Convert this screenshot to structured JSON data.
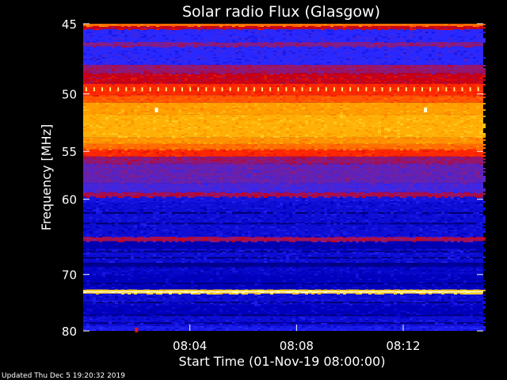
{
  "chart_data": {
    "type": "heatmap",
    "title": "Solar radio Flux (Glasgow)",
    "ylabel": "Frequency [MHz]",
    "xlabel": "Start Time (01-Nov-19 08:00:00)",
    "updated_text": "Updated Thu Dec  5 19:20:32 2019",
    "ylim": [
      45,
      80
    ],
    "y_axis": "reciprocal",
    "xlim": [
      "08:00:00",
      "08:15:00"
    ],
    "x_tick_labels": [
      "08:04",
      "08:08",
      "08:12"
    ],
    "x_ticks": [
      "08:04:00",
      "08:08:00",
      "08:12:00"
    ],
    "y_tick_labels": [
      "45",
      "50",
      "55",
      "60",
      "70",
      "80"
    ],
    "y_ticks": [
      45,
      50,
      55,
      60,
      70,
      80
    ],
    "grid": false,
    "colormap": "dark-blue to blue to red to orange to yellow (low to high intensity)",
    "bands": [
      {
        "f0": 45.0,
        "f1": 45.15,
        "level": 0.72
      },
      {
        "f0": 45.15,
        "f1": 45.35,
        "level": 0.5
      },
      {
        "f0": 45.35,
        "f1": 46.2,
        "level": 0.3
      },
      {
        "f0": 46.2,
        "f1": 46.5,
        "level": 0.42
      },
      {
        "f0": 46.5,
        "f1": 47.8,
        "level": 0.3
      },
      {
        "f0": 47.8,
        "f1": 48.4,
        "level": 0.44
      },
      {
        "f0": 48.4,
        "f1": 49.2,
        "level": 0.5
      },
      {
        "f0": 49.2,
        "f1": 50.1,
        "level": 0.6
      },
      {
        "f0": 50.1,
        "f1": 50.7,
        "level": 0.68
      },
      {
        "f0": 50.7,
        "f1": 51.7,
        "level": 0.8
      },
      {
        "f0": 51.7,
        "f1": 53.7,
        "level": 0.83
      },
      {
        "f0": 53.7,
        "f1": 54.3,
        "level": 0.78
      },
      {
        "f0": 54.3,
        "f1": 54.8,
        "level": 0.72
      },
      {
        "f0": 54.8,
        "f1": 55.5,
        "level": 0.6
      },
      {
        "f0": 55.5,
        "f1": 56.2,
        "level": 0.44
      },
      {
        "f0": 56.2,
        "f1": 58.2,
        "level": 0.38
      },
      {
        "f0": 58.2,
        "f1": 59.2,
        "level": 0.34
      },
      {
        "f0": 59.2,
        "f1": 59.7,
        "level": 0.46
      },
      {
        "f0": 59.7,
        "f1": 60.3,
        "level": 0.24
      },
      {
        "f0": 60.3,
        "f1": 64.6,
        "level": 0.22
      },
      {
        "f0": 64.6,
        "f1": 65.2,
        "level": 0.46
      },
      {
        "f0": 65.2,
        "f1": 66.2,
        "level": 0.16
      },
      {
        "f0": 66.2,
        "f1": 68.2,
        "level": 0.22
      },
      {
        "f0": 68.2,
        "f1": 68.8,
        "level": 0.1
      },
      {
        "f0": 68.8,
        "f1": 70.0,
        "level": 0.2
      },
      {
        "f0": 70.0,
        "f1": 72.4,
        "level": 0.18
      },
      {
        "f0": 72.4,
        "f1": 72.7,
        "level": 0.88
      },
      {
        "f0": 72.7,
        "f1": 72.9,
        "level": 1.0
      },
      {
        "f0": 72.9,
        "f1": 73.1,
        "level": 0.88
      },
      {
        "f0": 73.1,
        "f1": 75.0,
        "level": 0.22
      },
      {
        "f0": 75.0,
        "f1": 77.0,
        "level": 0.18
      },
      {
        "f0": 77.0,
        "f1": 79.0,
        "level": 0.22
      },
      {
        "f0": 79.0,
        "f1": 80.0,
        "level": 0.26
      }
    ],
    "dark_lines": [
      {
        "freq": 61.5
      },
      {
        "freq": 62.8
      },
      {
        "freq": 66.5
      },
      {
        "freq": 67.4
      },
      {
        "freq": 71.3
      },
      {
        "freq": 74.5
      },
      {
        "freq": 76.8
      },
      {
        "freq": 78.3
      }
    ],
    "features": [
      {
        "freq": 51.3,
        "time": "08:02:45",
        "level": 1.0
      },
      {
        "freq": 51.3,
        "time": "08:12:50",
        "level": 1.0
      },
      {
        "freq": 79.8,
        "time": "08:02:00",
        "level": 0.55
      }
    ],
    "periodic_marks": {
      "freq": 49.6,
      "interval_seconds": 18,
      "level": 0.95
    }
  }
}
